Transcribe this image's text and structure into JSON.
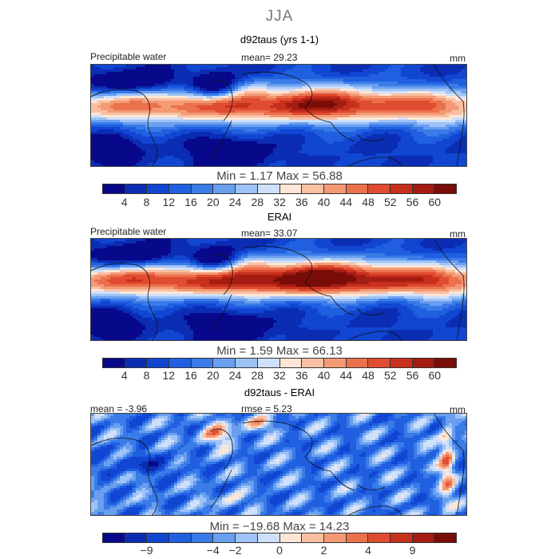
{
  "season": "JJA",
  "panels": [
    {
      "title": "d92taus (yrs 1-1)",
      "left_label": "Precipitable water",
      "center_label": "mean=  29.23",
      "units": "mm",
      "stats": "Min =    1.17  Max =  56.88",
      "field": "model"
    },
    {
      "title": "ERAI",
      "left_label": "Precipitable water",
      "center_label": "mean=  33.07",
      "units": "mm",
      "stats": "Min =    1.59  Max =  66.13",
      "field": "obs"
    },
    {
      "title": "d92taus - ERAI",
      "left_label": "mean =   -3.96",
      "center_label": "rmse =    5.23",
      "units": "mm",
      "stats": "Min = −19.68  Max =  14.23",
      "field": "diff"
    }
  ],
  "colorbar_abs": {
    "colors": [
      "#08088a",
      "#0a2db4",
      "#1146d2",
      "#1f5fe0",
      "#3a7be8",
      "#6a9ff0",
      "#9ec3f7",
      "#cfe0fb",
      "#fde6d6",
      "#f9c0a3",
      "#f39a75",
      "#eb714d",
      "#e04c30",
      "#c7301c",
      "#a51c12",
      "#7a0d08"
    ],
    "tick_labels": [
      "4",
      "8",
      "12",
      "16",
      "20",
      "24",
      "28",
      "32",
      "36",
      "40",
      "44",
      "48",
      "52",
      "56",
      "60"
    ]
  },
  "colorbar_diff": {
    "colors": [
      "#08088a",
      "#0a2db4",
      "#1146d2",
      "#1f5fe0",
      "#3a7be8",
      "#6a9ff0",
      "#9ec3f7",
      "#cfe0fb",
      "#fde6d6",
      "#f9c0a3",
      "#f39a75",
      "#eb714d",
      "#e04c30",
      "#c7301c",
      "#a51c12",
      "#7a0d08"
    ],
    "tick_labels": [
      "−9",
      "−4",
      "−2",
      "0",
      "2",
      "4",
      "9"
    ],
    "tick_boundaries": [
      2,
      5,
      6,
      8,
      10,
      12,
      14
    ]
  }
}
